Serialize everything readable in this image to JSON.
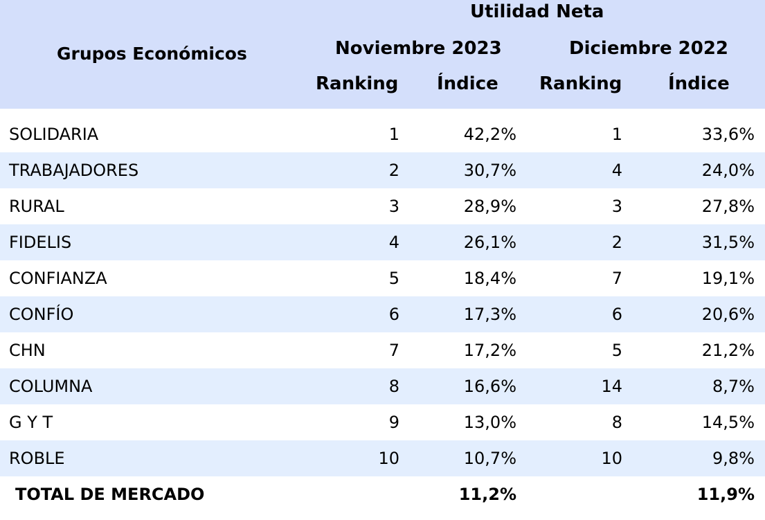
{
  "header": {
    "main_title": "Utilidad Neta",
    "group_label": "Grupos Económicos",
    "period_1": "Noviembre 2023",
    "period_2": "Diciembre 2022",
    "ranking_label": "Ranking",
    "index_label": "Índice"
  },
  "rows": [
    {
      "name": "SOLIDARIA",
      "rank_nov": "1",
      "index_nov": "42,2%",
      "rank_dic": "1",
      "index_dic": "33,6%"
    },
    {
      "name": "TRABAJADORES",
      "rank_nov": "2",
      "index_nov": "30,7%",
      "rank_dic": "4",
      "index_dic": "24,0%"
    },
    {
      "name": "RURAL",
      "rank_nov": "3",
      "index_nov": "28,9%",
      "rank_dic": "3",
      "index_dic": "27,8%"
    },
    {
      "name": "FIDELIS",
      "rank_nov": "4",
      "index_nov": "26,1%",
      "rank_dic": "2",
      "index_dic": "31,5%"
    },
    {
      "name": "CONFIANZA",
      "rank_nov": "5",
      "index_nov": "18,4%",
      "rank_dic": "7",
      "index_dic": "19,1%"
    },
    {
      "name": "CONFÍO",
      "rank_nov": "6",
      "index_nov": "17,3%",
      "rank_dic": "6",
      "index_dic": "20,6%"
    },
    {
      "name": "CHN",
      "rank_nov": "7",
      "index_nov": "17,2%",
      "rank_dic": "5",
      "index_dic": "21,2%"
    },
    {
      "name": "COLUMNA",
      "rank_nov": "8",
      "index_nov": "16,6%",
      "rank_dic": "14",
      "index_dic": "8,7%"
    },
    {
      "name": "G Y T",
      "rank_nov": "9",
      "index_nov": "13,0%",
      "rank_dic": "8",
      "index_dic": "14,5%"
    },
    {
      "name": "ROBLE",
      "rank_nov": "10",
      "index_nov": "10,7%",
      "rank_dic": "10",
      "index_dic": "9,8%"
    }
  ],
  "total": {
    "label": "TOTAL DE MERCADO",
    "index_nov": "11,2%",
    "index_dic": "11,9%"
  },
  "colors": {
    "header_bg": "#d4dffb",
    "alt_row_bg": "#e3eefe",
    "row_bg": "#ffffff"
  }
}
